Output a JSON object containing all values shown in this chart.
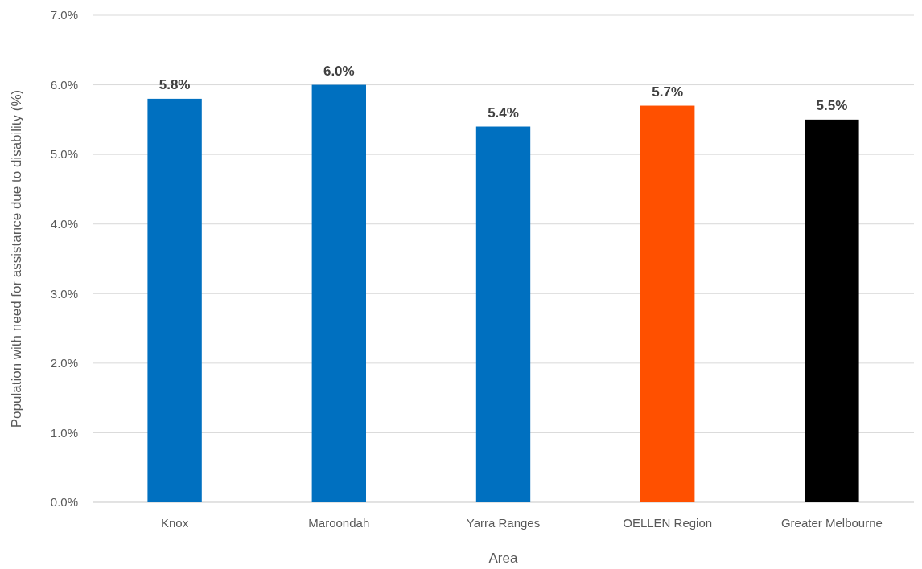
{
  "chart_data": {
    "type": "bar",
    "xlabel": "Area",
    "ylabel": "Population with need for assistance due to disability (%)",
    "categories": [
      "Knox",
      "Maroondah",
      "Yarra Ranges",
      "OELLEN Region",
      "Greater Melbourne"
    ],
    "values": [
      5.8,
      6.0,
      5.4,
      5.7,
      5.5
    ],
    "colors": [
      "#0070c0",
      "#0070c0",
      "#0070c0",
      "#ff5000",
      "#000000"
    ],
    "ylim": [
      0,
      7
    ],
    "yticks": [
      {
        "value": 0,
        "label": "0.0%"
      },
      {
        "value": 1,
        "label": "1.0%"
      },
      {
        "value": 2,
        "label": "2.0%"
      },
      {
        "value": 3,
        "label": "3.0%"
      },
      {
        "value": 4,
        "label": "4.0%"
      },
      {
        "value": 5,
        "label": "5.0%"
      },
      {
        "value": 6,
        "label": "6.0%"
      },
      {
        "value": 7,
        "label": "7.0%"
      }
    ],
    "value_labels": [
      "5.8%",
      "6.0%",
      "5.4%",
      "5.7%",
      "5.5%"
    ],
    "grid": true
  }
}
